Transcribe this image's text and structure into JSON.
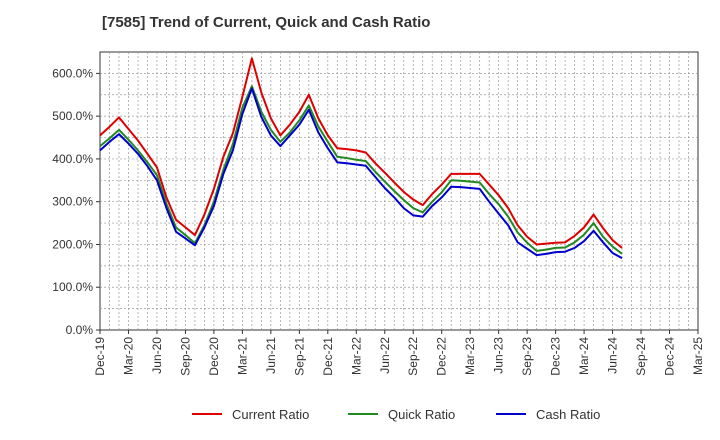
{
  "chart_data": {
    "type": "line",
    "title": "[7585]  Trend of Current, Quick and Cash Ratio",
    "xlabel": "",
    "ylabel": "",
    "ylim": [
      0,
      650
    ],
    "yticks": [
      "0.0%",
      "100.0%",
      "200.0%",
      "300.0%",
      "400.0%",
      "500.0%",
      "600.0%"
    ],
    "ytick_values": [
      0,
      100,
      200,
      300,
      400,
      500,
      600
    ],
    "xticks": [
      "Dec-19",
      "Mar-20",
      "Jun-20",
      "Sep-20",
      "Dec-20",
      "Mar-21",
      "Jun-21",
      "Sep-21",
      "Dec-21",
      "Mar-22",
      "Jun-22",
      "Sep-22",
      "Dec-22",
      "Mar-23",
      "Jun-23",
      "Sep-23",
      "Dec-23",
      "Mar-24",
      "Jun-24",
      "Sep-24",
      "Dec-24",
      "Mar-25"
    ],
    "grid": true,
    "legend_position": "bottom",
    "series": [
      {
        "name": "Current Ratio",
        "color": "#dd0000",
        "points": [
          [
            0,
            455
          ],
          [
            1,
            475
          ],
          [
            2,
            497
          ],
          [
            3,
            470
          ],
          [
            4,
            443
          ],
          [
            5,
            412
          ],
          [
            6,
            380
          ],
          [
            7,
            310
          ],
          [
            8,
            258
          ],
          [
            9,
            240
          ],
          [
            10,
            222
          ],
          [
            11,
            270
          ],
          [
            12,
            330
          ],
          [
            13,
            405
          ],
          [
            14,
            460
          ],
          [
            15,
            545
          ],
          [
            16,
            635
          ],
          [
            17,
            555
          ],
          [
            18,
            495
          ],
          [
            19,
            455
          ],
          [
            20,
            480
          ],
          [
            21,
            510
          ],
          [
            22,
            550
          ],
          [
            23,
            495
          ],
          [
            24,
            455
          ],
          [
            25,
            425
          ],
          [
            26,
            423
          ],
          [
            27,
            420
          ],
          [
            28,
            415
          ],
          [
            29,
            390
          ],
          [
            30,
            368
          ],
          [
            31,
            345
          ],
          [
            32,
            323
          ],
          [
            33,
            305
          ],
          [
            34,
            292
          ],
          [
            35,
            318
          ],
          [
            36,
            340
          ],
          [
            37,
            365
          ],
          [
            38,
            365
          ],
          [
            39,
            365
          ],
          [
            40,
            365
          ],
          [
            41,
            340
          ],
          [
            42,
            315
          ],
          [
            43,
            285
          ],
          [
            44,
            245
          ],
          [
            45,
            218
          ],
          [
            46,
            200
          ],
          [
            47,
            202
          ],
          [
            48,
            204
          ],
          [
            49,
            205
          ],
          [
            50,
            220
          ],
          [
            51,
            240
          ],
          [
            52,
            270
          ],
          [
            53,
            238
          ],
          [
            54,
            210
          ],
          [
            55,
            192
          ]
        ]
      },
      {
        "name": "Quick Ratio",
        "color": "#228822",
        "points": [
          [
            0,
            430
          ],
          [
            1,
            448
          ],
          [
            2,
            468
          ],
          [
            3,
            445
          ],
          [
            4,
            420
          ],
          [
            5,
            392
          ],
          [
            6,
            362
          ],
          [
            7,
            295
          ],
          [
            8,
            240
          ],
          [
            9,
            222
          ],
          [
            10,
            203
          ],
          [
            11,
            245
          ],
          [
            12,
            300
          ],
          [
            13,
            375
          ],
          [
            14,
            435
          ],
          [
            15,
            520
          ],
          [
            16,
            570
          ],
          [
            17,
            510
          ],
          [
            18,
            468
          ],
          [
            19,
            440
          ],
          [
            20,
            462
          ],
          [
            21,
            490
          ],
          [
            22,
            525
          ],
          [
            23,
            476
          ],
          [
            24,
            440
          ],
          [
            25,
            405
          ],
          [
            26,
            402
          ],
          [
            27,
            398
          ],
          [
            28,
            395
          ],
          [
            29,
            370
          ],
          [
            30,
            347
          ],
          [
            31,
            325
          ],
          [
            32,
            304
          ],
          [
            33,
            285
          ],
          [
            34,
            275
          ],
          [
            35,
            300
          ],
          [
            36,
            322
          ],
          [
            37,
            350
          ],
          [
            38,
            349
          ],
          [
            39,
            347
          ],
          [
            40,
            345
          ],
          [
            41,
            318
          ],
          [
            42,
            294
          ],
          [
            43,
            265
          ],
          [
            44,
            228
          ],
          [
            45,
            204
          ],
          [
            46,
            185
          ],
          [
            47,
            188
          ],
          [
            48,
            192
          ],
          [
            49,
            193
          ],
          [
            50,
            205
          ],
          [
            51,
            223
          ],
          [
            52,
            250
          ],
          [
            53,
            218
          ],
          [
            54,
            195
          ],
          [
            55,
            178
          ]
        ]
      },
      {
        "name": "Cash Ratio",
        "color": "#0000cc",
        "points": [
          [
            0,
            420
          ],
          [
            1,
            440
          ],
          [
            2,
            458
          ],
          [
            3,
            436
          ],
          [
            4,
            412
          ],
          [
            5,
            383
          ],
          [
            6,
            350
          ],
          [
            7,
            285
          ],
          [
            8,
            230
          ],
          [
            9,
            214
          ],
          [
            10,
            198
          ],
          [
            11,
            240
          ],
          [
            12,
            290
          ],
          [
            13,
            365
          ],
          [
            14,
            420
          ],
          [
            15,
            505
          ],
          [
            16,
            565
          ],
          [
            17,
            498
          ],
          [
            18,
            455
          ],
          [
            19,
            430
          ],
          [
            20,
            455
          ],
          [
            21,
            480
          ],
          [
            22,
            515
          ],
          [
            23,
            462
          ],
          [
            24,
            425
          ],
          [
            25,
            392
          ],
          [
            26,
            390
          ],
          [
            27,
            387
          ],
          [
            28,
            384
          ],
          [
            29,
            358
          ],
          [
            30,
            332
          ],
          [
            31,
            310
          ],
          [
            32,
            285
          ],
          [
            33,
            268
          ],
          [
            34,
            265
          ],
          [
            35,
            290
          ],
          [
            36,
            310
          ],
          [
            37,
            335
          ],
          [
            38,
            334
          ],
          [
            39,
            332
          ],
          [
            40,
            330
          ],
          [
            41,
            300
          ],
          [
            42,
            272
          ],
          [
            43,
            245
          ],
          [
            44,
            205
          ],
          [
            45,
            190
          ],
          [
            46,
            175
          ],
          [
            47,
            178
          ],
          [
            48,
            182
          ],
          [
            49,
            183
          ],
          [
            50,
            192
          ],
          [
            51,
            208
          ],
          [
            52,
            232
          ],
          [
            53,
            205
          ],
          [
            54,
            180
          ],
          [
            55,
            168
          ]
        ]
      }
    ]
  }
}
